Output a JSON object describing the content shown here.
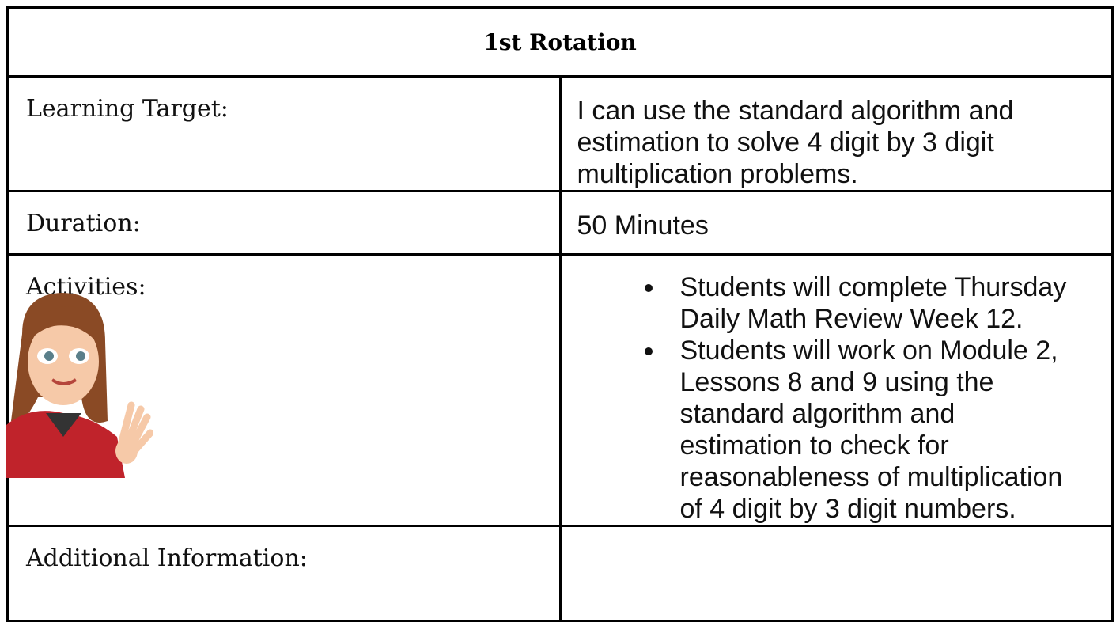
{
  "table": {
    "title": "1st Rotation",
    "rows": [
      {
        "label": "Learning Target:",
        "content": "I can use the standard algorithm and estimation to solve 4 digit by 3 digit multiplication problems."
      },
      {
        "label": "Duration:",
        "content": "50 Minutes"
      },
      {
        "label": "Activities:",
        "items": [
          "Students will complete Thursday Daily Math Review Week 12.",
          "Students will work on Module 2, Lessons 8 and 9 using the standard algorithm and estimation to check for reasonableness of multiplication of 4 digit by 3 digit numbers."
        ]
      },
      {
        "label": "Additional Information:"
      }
    ]
  }
}
